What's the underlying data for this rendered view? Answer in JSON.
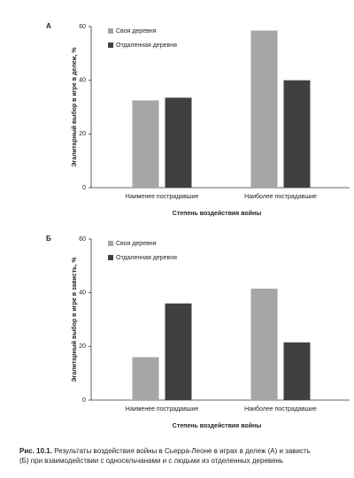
{
  "chart_data": [
    {
      "type": "bar",
      "title": "А",
      "categories": [
        "Наименее пострадавшие",
        "Наиболее пострадавшие"
      ],
      "series": [
        {
          "name": "Своя деревня",
          "color": "#a6a6a6",
          "values": [
            32.5,
            58.5
          ]
        },
        {
          "name": "Отдаленная деревня",
          "color": "#404040",
          "values": [
            33.5,
            40
          ]
        }
      ],
      "y_label": "Эгалитарный выбор в игре в дележ, %",
      "x_label": "Степень воздействия войны",
      "ylim": [
        0,
        60
      ],
      "yticks": [
        0,
        20,
        40,
        60
      ],
      "legend": "upper left"
    },
    {
      "type": "bar",
      "title": "Б",
      "categories": [
        "Наименее пострадавшие",
        "Наиболее пострадавшие"
      ],
      "series": [
        {
          "name": "Своя деревня",
          "color": "#a6a6a6",
          "values": [
            16,
            41.5
          ]
        },
        {
          "name": "Отдаленная деревня",
          "color": "#404040",
          "values": [
            36,
            21.5
          ]
        }
      ],
      "y_label": "Эгалитарный выбор в игре в зависть, %",
      "x_label": "Степень воздействия войны",
      "ylim": [
        0,
        60
      ],
      "yticks": [
        0,
        20,
        40,
        60
      ],
      "legend": "upper left"
    }
  ],
  "caption": {
    "label": "Рис. 10.1.",
    "text": "Результаты воздействия войны в Сьерра-Леоне в играх в дележ (А) и зависть (Б) при взаимодействии с односельчанами и с людьми из отделенных деревень"
  }
}
